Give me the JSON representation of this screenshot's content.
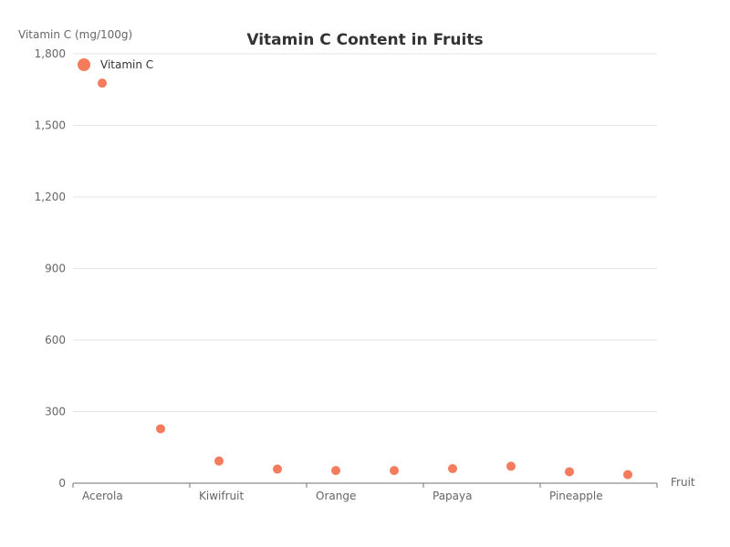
{
  "chart_data": {
    "type": "scatter",
    "title": "Vitamin C Content in Fruits",
    "xlabel": "Fruit",
    "ylabel": "Vitamin C (mg/100g)",
    "categories": [
      "Acerola",
      "",
      "Kiwifruit",
      "",
      "Orange",
      "",
      "Papaya",
      "",
      "Pineapple",
      ""
    ],
    "series": [
      {
        "name": "Vitamin C",
        "values": [
          1677,
          228,
          93,
          59,
          53,
          53,
          61,
          71,
          48,
          36
        ]
      }
    ],
    "ylim": [
      0,
      1800
    ],
    "yticks": [
      0,
      300,
      600,
      900,
      1200,
      1500,
      1800
    ],
    "ytick_labels": [
      "0",
      "300",
      "600",
      "900",
      "1,200",
      "1,500",
      "1,800"
    ],
    "grid": true,
    "legend_position": "top-left",
    "color": "#f47c5c"
  }
}
